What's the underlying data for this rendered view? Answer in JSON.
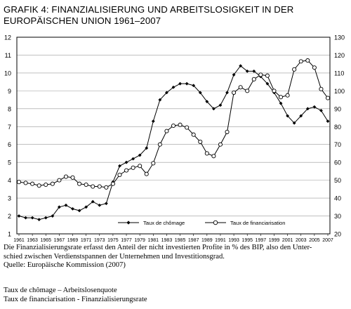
{
  "figure": {
    "title_line1": "GRAFIK 4: FINANZIALISIERUNG UND ARBEITSLOSIGKEIT IN DER",
    "title_line2": "EUROPÄISCHEN UNION 1961–2007"
  },
  "caption": {
    "line1": "Die Finanzialisierungsrate erfasst den Anteil der nicht investierten Profite in % des BIP, also den Unter-",
    "line2": "schied zwischen Verdienstspannen der Unternehmen und Investitionsgrad.",
    "line3": "Quelle: Europäische Kommission (2007)",
    "line4": "Taux de chômage – Arbeitslosenquote",
    "line5": "Taux de financiarisation - Finanzialisierungsrate"
  },
  "chart_data": {
    "type": "line",
    "x": [
      1961,
      1962,
      1963,
      1964,
      1965,
      1966,
      1967,
      1968,
      1969,
      1970,
      1971,
      1972,
      1973,
      1974,
      1975,
      1976,
      1977,
      1978,
      1979,
      1980,
      1981,
      1982,
      1983,
      1984,
      1985,
      1986,
      1987,
      1988,
      1989,
      1990,
      1991,
      1992,
      1993,
      1994,
      1995,
      1996,
      1997,
      1998,
      1999,
      2000,
      2001,
      2002,
      2003,
      2004,
      2005,
      2006,
      2007
    ],
    "x_tick_labels": [
      "1961",
      "1963",
      "1965",
      "1967",
      "1969",
      "1971",
      "1973",
      "1975",
      "1977",
      "1979",
      "1981",
      "1983",
      "1985",
      "1987",
      "1989",
      "1991",
      "1993",
      "1995",
      "1997",
      "1999",
      "2001",
      "2003",
      "2005",
      "2007"
    ],
    "y_left": {
      "min": 1,
      "max": 12,
      "ticks": [
        1,
        2,
        3,
        4,
        5,
        6,
        7,
        8,
        9,
        10,
        11,
        12
      ]
    },
    "y_right": {
      "min": 20,
      "max": 130,
      "ticks": [
        20,
        30,
        40,
        50,
        60,
        70,
        80,
        90,
        100,
        110,
        120,
        130
      ]
    },
    "grid": true,
    "legend_position": "bottom",
    "series": [
      {
        "name": "Taux de chômage",
        "axis": "left",
        "marker": "filled-diamond",
        "values": [
          2.0,
          1.9,
          1.9,
          1.8,
          1.9,
          2.0,
          2.5,
          2.6,
          2.4,
          2.3,
          2.5,
          2.8,
          2.6,
          2.7,
          3.9,
          4.8,
          5.0,
          5.2,
          5.4,
          5.8,
          7.3,
          8.5,
          8.9,
          9.2,
          9.4,
          9.4,
          9.3,
          8.9,
          8.4,
          8.0,
          8.2,
          8.9,
          9.9,
          10.4,
          10.1,
          10.1,
          9.8,
          9.4,
          8.9,
          8.3,
          7.6,
          7.2,
          7.6,
          8.0,
          8.1,
          7.9,
          7.3
        ]
      },
      {
        "name": "Taux de financiarisation",
        "axis": "right",
        "marker": "open-circle",
        "values": [
          49,
          48.5,
          48,
          47,
          47.5,
          48,
          50,
          52,
          51.5,
          48,
          47.5,
          46.5,
          46.5,
          46,
          48,
          53,
          55.5,
          57,
          58,
          53.5,
          59.5,
          70,
          77.5,
          80.5,
          81,
          79.5,
          75.5,
          71.5,
          65,
          63.5,
          70,
          77,
          99,
          102,
          100,
          106.5,
          109,
          108.5,
          100,
          96.5,
          97.5,
          112,
          116.5,
          117,
          113,
          101,
          96
        ]
      }
    ]
  }
}
